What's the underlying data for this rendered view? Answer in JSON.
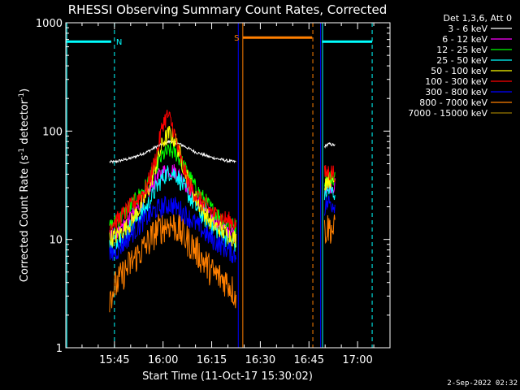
{
  "chart_data": {
    "type": "line",
    "title": "RHESSI Observing Summary Count Rates, Corrected",
    "xlabel": "Start Time (11-Oct-17 15:30:02)",
    "ylabel_main": "Corrected Count Rate (s",
    "ylabel_sup1": "-1",
    "ylabel_mid": " detector",
    "ylabel_sup2": "-1",
    "ylabel_end": ")",
    "x_unit": "minutes since 15:30:02",
    "xlim": [
      0,
      100
    ],
    "ylim": [
      1,
      1000
    ],
    "y_scale": "log",
    "x_ticks": [
      {
        "value": 15,
        "label": "15:45"
      },
      {
        "value": 30,
        "label": "16:00"
      },
      {
        "value": 45,
        "label": "16:15"
      },
      {
        "value": 60,
        "label": "16:30"
      },
      {
        "value": 75,
        "label": "16:45"
      },
      {
        "value": 90,
        "label": "17:00"
      }
    ],
    "y_ticks": [
      {
        "value": 1,
        "label": "1"
      },
      {
        "value": 10,
        "label": "10"
      },
      {
        "value": 100,
        "label": "100"
      },
      {
        "value": 1000,
        "label": "1000"
      }
    ],
    "legend_title": "Det 1,3,6, Att 0",
    "legend_position": "right",
    "series": [
      {
        "name": "3 - 6 keV",
        "color": "#ffffff",
        "segments": [
          {
            "x": [
              13.5,
              15,
              20,
              25,
              28,
              30,
              32,
              34,
              36,
              40,
              45,
              50,
              52.5
            ],
            "y": [
              52,
              52,
              56,
              64,
              72,
              76,
              80,
              78,
              74,
              64,
              57,
              53,
              52
            ]
          },
          {
            "x": [
              79.8,
              81,
              83
            ],
            "y": [
              72,
              76,
              74
            ]
          }
        ]
      },
      {
        "name": "6 - 12 keV",
        "color": "#ff00ff",
        "segments": [
          {
            "x": [
              13.5,
              16,
              20,
              25,
              28,
              30,
              32,
              34,
              36,
              40,
              45,
              50,
              52.5
            ],
            "y": [
              11,
              12,
              16,
              26,
              36,
              42,
              44,
              42,
              36,
              24,
              16,
              12,
              11
            ]
          },
          {
            "x": [
              79.8,
              81,
              83
            ],
            "y": [
              30,
              32,
              31
            ]
          }
        ]
      },
      {
        "name": "12 - 25 keV",
        "color": "#00ff00",
        "segments": [
          {
            "x": [
              13.5,
              16,
              20,
              25,
              28,
              30,
              32,
              34,
              36,
              40,
              45,
              50,
              52.5
            ],
            "y": [
              13,
              15,
              20,
              32,
              48,
              60,
              66,
              62,
              50,
              30,
              19,
              14,
              13
            ]
          },
          {
            "x": [
              79.8,
              81,
              83
            ],
            "y": [
              36,
              38,
              37
            ]
          }
        ]
      },
      {
        "name": "25 - 50 keV",
        "color": "#00ffff",
        "segments": [
          {
            "x": [
              13.5,
              16,
              20,
              25,
              28,
              30,
              32,
              34,
              36,
              40,
              45,
              50,
              52.5
            ],
            "y": [
              9,
              10,
              13,
              20,
              30,
              38,
              42,
              40,
              32,
              20,
              13,
              10,
              9
            ]
          },
          {
            "x": [
              79.8,
              81,
              83
            ],
            "y": [
              26,
              28,
              27
            ]
          }
        ]
      },
      {
        "name": "50 - 100 keV",
        "color": "#ffff00",
        "segments": [
          {
            "x": [
              13.5,
              16,
              20,
              25,
              28,
              30,
              32,
              34,
              36,
              40,
              45,
              50,
              52.5
            ],
            "y": [
              10,
              11,
              14,
              26,
              50,
              80,
              95,
              80,
              50,
              24,
              14,
              11,
              10
            ]
          },
          {
            "x": [
              79.8,
              81,
              83
            ],
            "y": [
              34,
              36,
              35
            ]
          }
        ]
      },
      {
        "name": "100 - 300 keV",
        "color": "#ff0000",
        "segments": [
          {
            "x": [
              13.5,
              16,
              20,
              25,
              28,
              30,
              31.5,
              33,
              35,
              38,
              42,
              46,
              50,
              52.5
            ],
            "y": [
              14,
              15,
              20,
              30,
              60,
              120,
              140,
              110,
              60,
              32,
              22,
              17,
              15,
              14
            ]
          },
          {
            "x": [
              79.8,
              81,
              83
            ],
            "y": [
              40,
              42,
              41
            ]
          }
        ]
      },
      {
        "name": "300 - 800 keV",
        "color": "#0000ff",
        "segments": [
          {
            "x": [
              13.5,
              16,
              20,
              25,
              28,
              30,
              32,
              34,
              36,
              40,
              45,
              50,
              52.5
            ],
            "y": [
              7,
              8,
              11,
              16,
              19,
              20,
              21,
              20,
              18,
              14,
              10,
              8,
              7
            ]
          },
          {
            "x": [
              79.8,
              81,
              83
            ],
            "y": [
              20,
              22,
              21
            ]
          }
        ]
      },
      {
        "name": "800 - 7000 keV",
        "color": "#ff7f00",
        "segments": [
          {
            "x": [
              13.5,
              16,
              20,
              25,
              28,
              30,
              32,
              34,
              36,
              40,
              45,
              50,
              52.5
            ],
            "y": [
              3,
              4,
              6,
              9,
              12,
              13,
              14,
              13,
              11,
              8,
              5,
              4,
              3
            ]
          },
          {
            "x": [
              79.8,
              81,
              83
            ],
            "y": [
              12,
              13,
              12
            ]
          }
        ]
      },
      {
        "name": "7000 - 15000 keV",
        "color": "#9a7a00",
        "segments": []
      }
    ],
    "annotations": [
      {
        "type": "bar",
        "label": "N",
        "x0": 0,
        "x1": 14,
        "y": 670,
        "color": "#00ffff",
        "label_color": "#00ffff"
      },
      {
        "type": "bar",
        "label": "S",
        "x0": 54.5,
        "x1": 76,
        "y": 730,
        "color": "#ff7f00",
        "label_color": "#ff7f00"
      },
      {
        "type": "bar",
        "label": "",
        "x0": 79,
        "x1": 94.5,
        "y": 670,
        "color": "#00ffff",
        "label_color": "#00ffff"
      }
    ],
    "vlines": [
      {
        "x": 0.3,
        "color": "#00ffff",
        "style": "solid"
      },
      {
        "x": 15,
        "color": "#00ffff",
        "style": "dashed"
      },
      {
        "x": 53.2,
        "color": "#0000ff",
        "style": "solid"
      },
      {
        "x": 54.6,
        "color": "#ff7f00",
        "style": "solid"
      },
      {
        "x": 76.2,
        "color": "#ff7f00",
        "style": "dashed"
      },
      {
        "x": 78.6,
        "color": "#0000ff",
        "style": "solid"
      },
      {
        "x": 79.2,
        "color": "#00ffff",
        "style": "solid"
      },
      {
        "x": 94.5,
        "color": "#00ffff",
        "style": "dashed"
      }
    ]
  },
  "timestamp": "2-Sep-2022 02:32"
}
